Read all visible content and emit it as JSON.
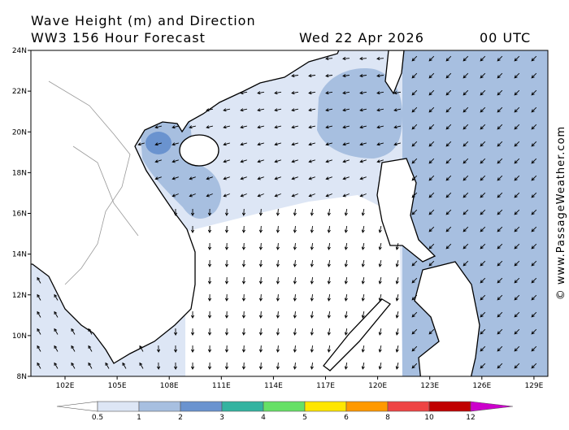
{
  "header": {
    "title": "Wave Height (m) and Direction",
    "subtitle": "WW3 156 Hour Forecast",
    "date": "Wed 22 Apr 2026",
    "time": "00 UTC"
  },
  "map": {
    "lat_ticks": [
      "24N",
      "22N",
      "20N",
      "18N",
      "16N",
      "14N",
      "12N",
      "10N",
      "8N"
    ],
    "lon_ticks": [
      "102E",
      "105E",
      "108E",
      "111E",
      "114E",
      "117E",
      "120E",
      "123E",
      "126E",
      "129E"
    ]
  },
  "legend": {
    "labels": [
      "0.5",
      "1",
      "2",
      "3",
      "4",
      "5",
      "6",
      "8",
      "10",
      "12"
    ],
    "colors": [
      "#ffffff",
      "#dde6f5",
      "#a7bfe0",
      "#6a93cf",
      "#33b3a0",
      "#66e066",
      "#ffe600",
      "#ff9900",
      "#ee4444",
      "#c00000",
      "#cc00cc"
    ]
  },
  "credit": "© www.PassageWeather.com"
}
